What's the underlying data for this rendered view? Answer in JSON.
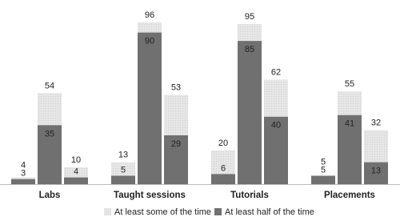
{
  "chart_data": {
    "type": "overlap-bar",
    "categories": [
      "Labs",
      "Taught sessions",
      "Tutorials",
      "Placements"
    ],
    "series": [
      {
        "name": "At least some of the time",
        "color": "#e2e2e2",
        "values": [
          [
            4,
            54,
            10
          ],
          [
            13,
            96,
            53
          ],
          [
            20,
            95,
            62
          ],
          [
            5,
            55,
            32
          ]
        ]
      },
      {
        "name": "At least half of the time",
        "color": "#707070",
        "values": [
          [
            3,
            35,
            4
          ],
          [
            5,
            90,
            29
          ],
          [
            6,
            85,
            40
          ],
          [
            5,
            41,
            13
          ]
        ]
      }
    ],
    "legend": "bottom"
  }
}
